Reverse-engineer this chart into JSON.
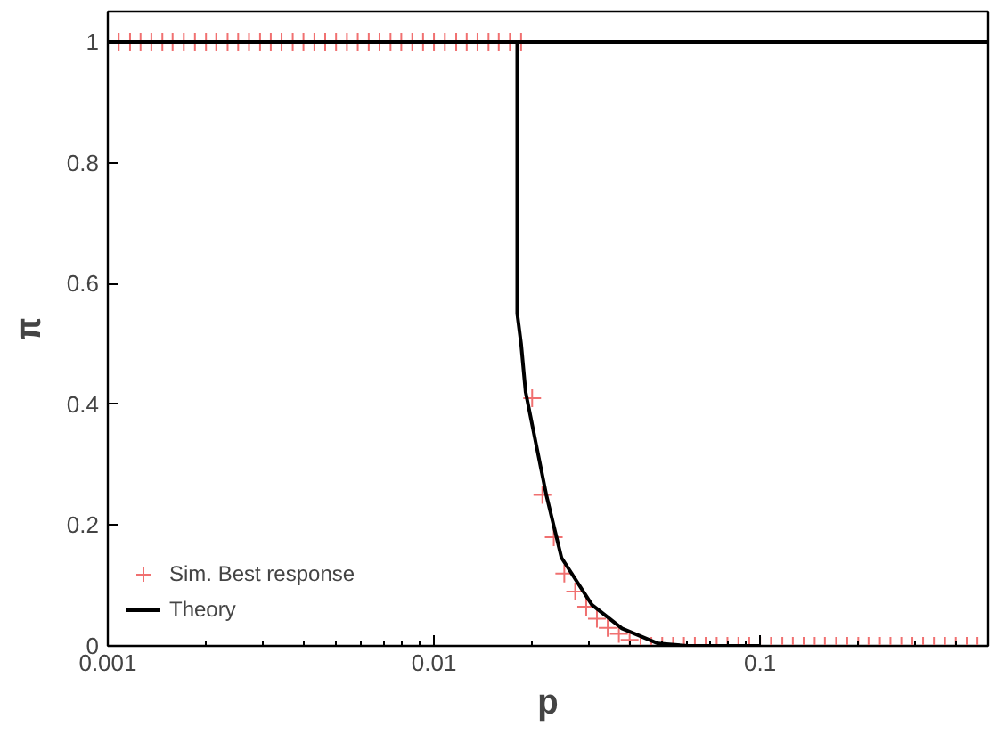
{
  "chart_data": {
    "type": "scatter",
    "xlabel": "p",
    "ylabel": "π",
    "log": "x",
    "xlim": [
      0.001,
      0.5
    ],
    "ylim": [
      0,
      1.05
    ],
    "xticks": [
      0.001,
      0.01,
      0.1
    ],
    "yticks": [
      0,
      0.2,
      0.4,
      0.6,
      0.8,
      1
    ],
    "legend": "bottom left",
    "series": [
      {
        "name": "Sim. Best response",
        "marker": "cross",
        "color": "#f07070",
        "x": [
          0.00108,
          0.00117,
          0.00126,
          0.00136,
          0.00147,
          0.00158,
          0.00171,
          0.00185,
          0.002,
          0.00215,
          0.00233,
          0.00251,
          0.00271,
          0.00293,
          0.00316,
          0.00341,
          0.00369,
          0.00398,
          0.0043,
          0.00464,
          0.00501,
          0.00541,
          0.00584,
          0.00631,
          0.00681,
          0.00736,
          0.00794,
          0.00858,
          0.00926,
          0.01,
          0.0108,
          0.0117,
          0.0126,
          0.0136,
          0.0147,
          0.0158,
          0.0171,
          0.0185,
          0.02,
          0.0215,
          0.0233,
          0.0251,
          0.0271,
          0.0293,
          0.0316,
          0.0341,
          0.0369,
          0.0398,
          0.043,
          0.0464,
          0.0501,
          0.0541,
          0.0584,
          0.0631,
          0.0681,
          0.0736,
          0.0794,
          0.0858,
          0.0926,
          0.1,
          0.108,
          0.117,
          0.126,
          0.136,
          0.147,
          0.158,
          0.171,
          0.185,
          0.2,
          0.215,
          0.233,
          0.251,
          0.271,
          0.293,
          0.316,
          0.341,
          0.369,
          0.398,
          0.43,
          0.464
        ],
        "values": [
          1,
          1,
          1,
          1,
          1,
          1,
          1,
          1,
          1,
          1,
          1,
          1,
          1,
          1,
          1,
          1,
          1,
          1,
          1,
          1,
          1,
          1,
          1,
          1,
          1,
          1,
          1,
          1,
          1,
          1,
          1,
          1,
          1,
          1,
          1,
          1,
          1,
          1,
          0.41,
          0.25,
          0.18,
          0.12,
          0.09,
          0.065,
          0.045,
          0.03,
          0.02,
          0.01,
          0,
          0,
          0,
          0,
          0,
          0,
          0,
          0,
          0,
          0,
          0,
          0,
          0,
          0,
          0,
          0,
          0,
          0,
          0,
          0,
          0,
          0,
          0,
          0,
          0,
          0,
          0,
          0,
          0,
          0,
          0,
          0
        ]
      },
      {
        "name": "Theory",
        "type": "line",
        "line_style": "solid",
        "color": "#000000",
        "x": [
          0.001,
          0.018,
          0.018,
          0.0185,
          0.0191,
          0.0221,
          0.0246,
          0.0305,
          0.0377,
          0.0487,
          0.06,
          0.1
        ],
        "values": [
          1,
          1,
          0.55,
          0.5,
          0.42,
          0.25,
          0.146,
          0.068,
          0.029,
          0.004,
          0,
          0
        ]
      },
      {
        "type": "line",
        "line_style": "solid",
        "color": "#000000",
        "x": [
          0.018,
          0.5
        ],
        "values": [
          1,
          1
        ]
      }
    ]
  }
}
